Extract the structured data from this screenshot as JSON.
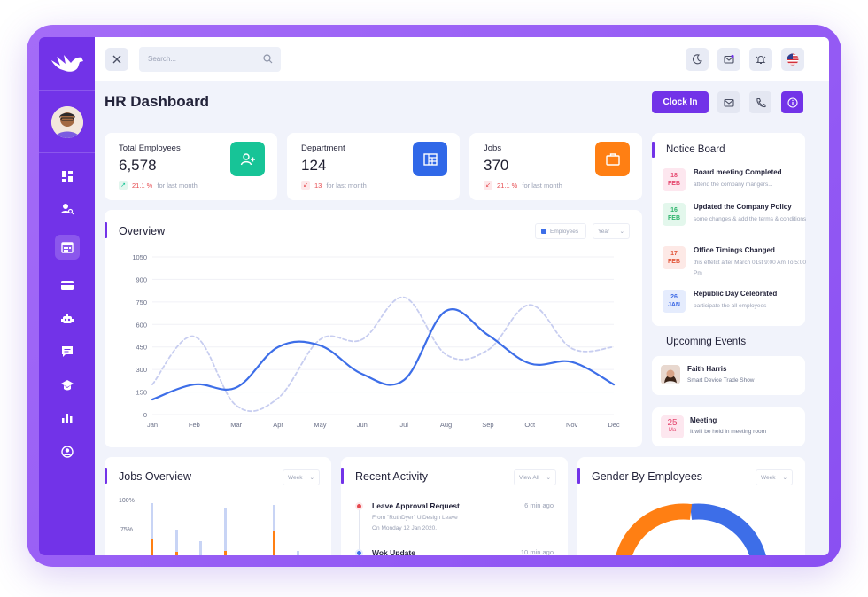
{
  "search": {
    "placeholder": "Search..."
  },
  "page": {
    "title": "HR Dashboard",
    "clock_in_label": "Clock In"
  },
  "stats": [
    {
      "label": "Total Employees",
      "value": "6,578",
      "trend_pct": "21.1 %",
      "trend_text": "for last month",
      "trend_dir": "up",
      "icon": "users-icon",
      "color": "#17c497"
    },
    {
      "label": "Department",
      "value": "124",
      "trend_pct": "13",
      "trend_text": "for last month",
      "trend_dir": "down",
      "icon": "building-icon",
      "color": "#3068e8"
    },
    {
      "label": "Jobs",
      "value": "370",
      "trend_pct": "21.1 %",
      "trend_text": "for last month",
      "trend_dir": "down",
      "icon": "briefcase-icon",
      "color": "#ff7f13"
    }
  ],
  "overview": {
    "title": "Overview",
    "legend_label": "Employees",
    "period_label": "Year"
  },
  "chart_data": {
    "type": "line",
    "categories": [
      "Jan",
      "Feb",
      "Mar",
      "Apr",
      "May",
      "Jun",
      "Jul",
      "Aug",
      "Sep",
      "Oct",
      "Nov",
      "Dec"
    ],
    "series": [
      {
        "name": "Employees",
        "style": "solid",
        "color": "#3d6ee8",
        "values": [
          100,
          200,
          180,
          450,
          460,
          270,
          230,
          690,
          530,
          340,
          350,
          200
        ]
      },
      {
        "name": "",
        "style": "dashed",
        "color": "#c7cdf0",
        "values": [
          200,
          520,
          60,
          110,
          500,
          500,
          780,
          400,
          430,
          730,
          440,
          450
        ]
      }
    ],
    "y_ticks": [
      "0",
      "150",
      "300",
      "450",
      "600",
      "750",
      "900",
      "1050"
    ],
    "ylim": [
      0,
      1050
    ],
    "grid": true
  },
  "notice_board": {
    "title": "Notice Board",
    "items": [
      {
        "day": "18",
        "month": "FEB",
        "title": "Board meeting Completed",
        "sub": "attend the company mangers...",
        "bg": "#fde7ef",
        "fg": "#e5486f"
      },
      {
        "day": "16",
        "month": "FEB",
        "title": "Updated the Company Policy",
        "sub": "some changes & add the terms & conditions",
        "bg": "#e3f7ec",
        "fg": "#2fb46d"
      },
      {
        "day": "17",
        "month": "FEB",
        "title": "Office Timings Changed",
        "sub": "this effetct after March 01st 9:00 Am To 5:00 Pm",
        "bg": "#fde9e6",
        "fg": "#e2573b"
      },
      {
        "day": "26",
        "month": "JAN",
        "title": "Republic Day Celebrated",
        "sub": "participate the all employees",
        "bg": "#e5ecfd",
        "fg": "#3e6ae6"
      }
    ]
  },
  "upcoming": {
    "title": "Upcoming Events",
    "events": [
      {
        "name": "Faith Harris",
        "sub": "Smart Device Trade Show"
      },
      {
        "day": "25",
        "month": "Ma",
        "name": "Meeting",
        "sub": "It will be held in meeting room"
      }
    ]
  },
  "jobs_overview": {
    "title": "Jobs Overview",
    "period": "Week",
    "y_ticks": [
      "100%",
      "75%"
    ]
  },
  "recent_activity": {
    "title": "Recent Activity",
    "filter": "View All",
    "items": [
      {
        "title": "Leave Approval Request",
        "sub1": "From \"RuthDyer\" UiDesign Leave",
        "sub2": "On Monday 12 Jan 2020.",
        "time": "6 min ago",
        "dot": "#e5484d"
      },
      {
        "title": "Wok Update",
        "time": "10 min ago",
        "dot": "#3d6ee8"
      }
    ]
  },
  "gender": {
    "title": "Gender By Employees",
    "period": "Week"
  }
}
